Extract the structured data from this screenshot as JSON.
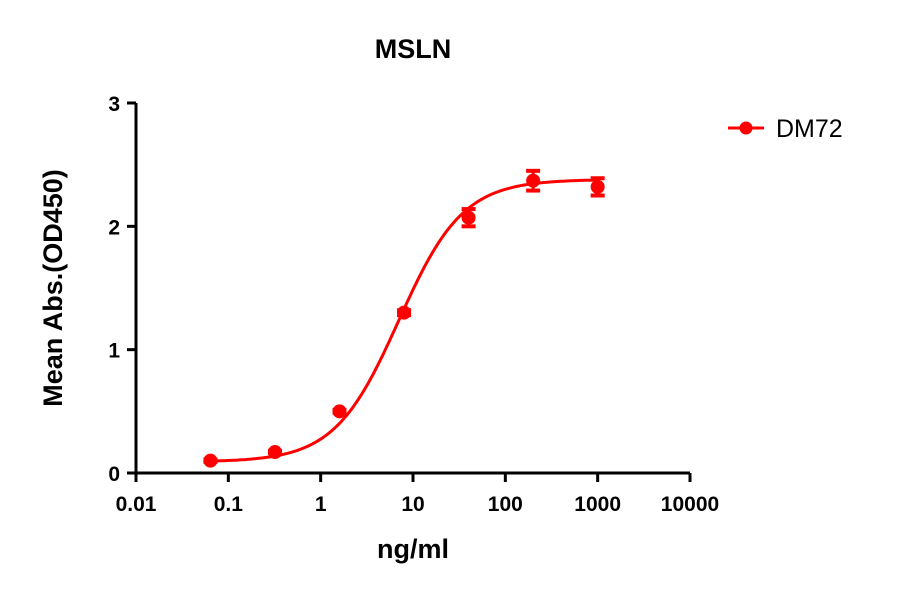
{
  "chart_data": {
    "type": "scatter",
    "title": "MSLN",
    "xlabel": "ng/ml",
    "ylabel": "Mean Abs.(OD450)",
    "x_scale": "log",
    "xlim": [
      0.01,
      10000
    ],
    "ylim": [
      0,
      3
    ],
    "x_ticks": [
      "0.01",
      "0.1",
      "1",
      "10",
      "100",
      "1000",
      "10000"
    ],
    "y_ticks": [
      "0",
      "1",
      "2",
      "3"
    ],
    "grid": false,
    "legend_position": "top-right",
    "color": "#ff0000",
    "series": [
      {
        "name": "DM72",
        "x": [
          0.064,
          0.32,
          1.6,
          8,
          40,
          200,
          1000
        ],
        "y": [
          0.1,
          0.17,
          0.5,
          1.3,
          2.07,
          2.37,
          2.32
        ],
        "error": [
          0.01,
          0.01,
          0.01,
          0.02,
          0.07,
          0.08,
          0.07
        ],
        "fit": {
          "model": "4PL",
          "bottom": 0.09,
          "top": 2.38,
          "ec50": 7.0,
          "hill": 1.25
        }
      }
    ]
  }
}
